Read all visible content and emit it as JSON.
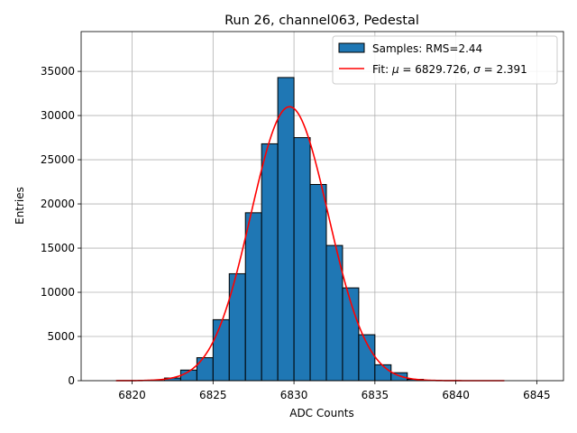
{
  "chart_data": {
    "type": "bar",
    "title": "Run 26, channel063, Pedestal",
    "xlabel": "ADC Counts",
    "ylabel": "Entries",
    "xlim": [
      6816.85,
      6846.65
    ],
    "ylim": [
      0,
      39500
    ],
    "xticks": [
      6820,
      6825,
      6830,
      6835,
      6840,
      6845
    ],
    "yticks": [
      0,
      5000,
      10000,
      15000,
      20000,
      25000,
      30000,
      35000
    ],
    "grid": true,
    "legend_position": "top-right",
    "bin_width": 1,
    "histogram": {
      "name": "Samples: RMS=2.44",
      "color": "#1f77b4",
      "bins": [
        {
          "x0": 6821,
          "value": 20
        },
        {
          "x0": 6822,
          "value": 300
        },
        {
          "x0": 6823,
          "value": 1200
        },
        {
          "x0": 6824,
          "value": 2600
        },
        {
          "x0": 6825,
          "value": 6900
        },
        {
          "x0": 6826,
          "value": 12100
        },
        {
          "x0": 6827,
          "value": 19000
        },
        {
          "x0": 6828,
          "value": 26800
        },
        {
          "x0": 6829,
          "value": 34300
        },
        {
          "x0": 6830,
          "value": 27500
        },
        {
          "x0": 6831,
          "value": 22200
        },
        {
          "x0": 6832,
          "value": 15300
        },
        {
          "x0": 6833,
          "value": 10500
        },
        {
          "x0": 6834,
          "value": 5200
        },
        {
          "x0": 6835,
          "value": 1800
        },
        {
          "x0": 6836,
          "value": 900
        },
        {
          "x0": 6837,
          "value": 150
        },
        {
          "x0": 6838,
          "value": 30
        }
      ]
    },
    "fit": {
      "name_prefix": "Fit: ",
      "mu_symbol": "μ",
      "mu_text": " = 6829.726, ",
      "sigma_symbol": "σ",
      "sigma_text": " = 2.391",
      "color": "#ff0000",
      "mu": 6829.726,
      "sigma": 2.391,
      "amplitude": 31000,
      "x_range": [
        6819,
        6843
      ]
    }
  }
}
